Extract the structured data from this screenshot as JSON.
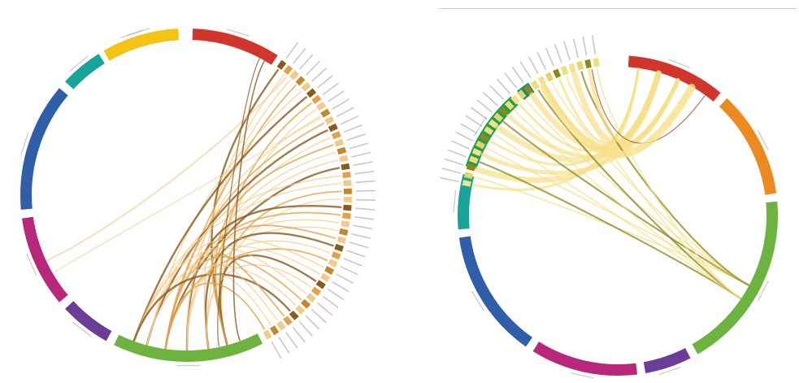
{
  "colors": {
    "red": "#d0362b",
    "orange": "#ec8a1f",
    "lightgreen": "#6db33f",
    "purple": "#6a3e98",
    "magenta": "#b8287a",
    "blue": "#2e5fa8",
    "teal": "#1aa39a",
    "green": "#21a04d",
    "darkteal": "#158a74",
    "yellow": "#f5c311",
    "chord_light": "#f2c98a",
    "chord_mid": "#e3a24a",
    "chord_dark": "#8a5a1c",
    "chord_olive": "#8d8a1a",
    "chord_pale_yellow": "#f6e08a",
    "chord_brown_red": "#a0522d"
  },
  "diagrams": [
    {
      "id": "left",
      "segments": [
        {
          "name": "",
          "color": "red"
        },
        {
          "name": "",
          "color": "lightgreen"
        },
        {
          "name": "",
          "color": "purple"
        },
        {
          "name": "",
          "color": "magenta"
        },
        {
          "name": "",
          "color": "blue"
        },
        {
          "name": "",
          "color": "teal"
        },
        {
          "name": "",
          "color": "green"
        },
        {
          "name": "",
          "color": "darkteal"
        },
        {
          "name": "",
          "color": "yellow"
        }
      ],
      "node_count": 40
    },
    {
      "id": "right",
      "segments": [
        {
          "name": "",
          "color": "red"
        },
        {
          "name": "",
          "color": "orange"
        },
        {
          "name": "",
          "color": "lightgreen"
        },
        {
          "name": "",
          "color": "purple"
        },
        {
          "name": "",
          "color": "magenta"
        },
        {
          "name": "",
          "color": "blue"
        },
        {
          "name": "",
          "color": "teal"
        },
        {
          "name": "",
          "color": "green"
        },
        {
          "name": "",
          "color": "darkteal"
        }
      ],
      "node_count": 24
    }
  ]
}
